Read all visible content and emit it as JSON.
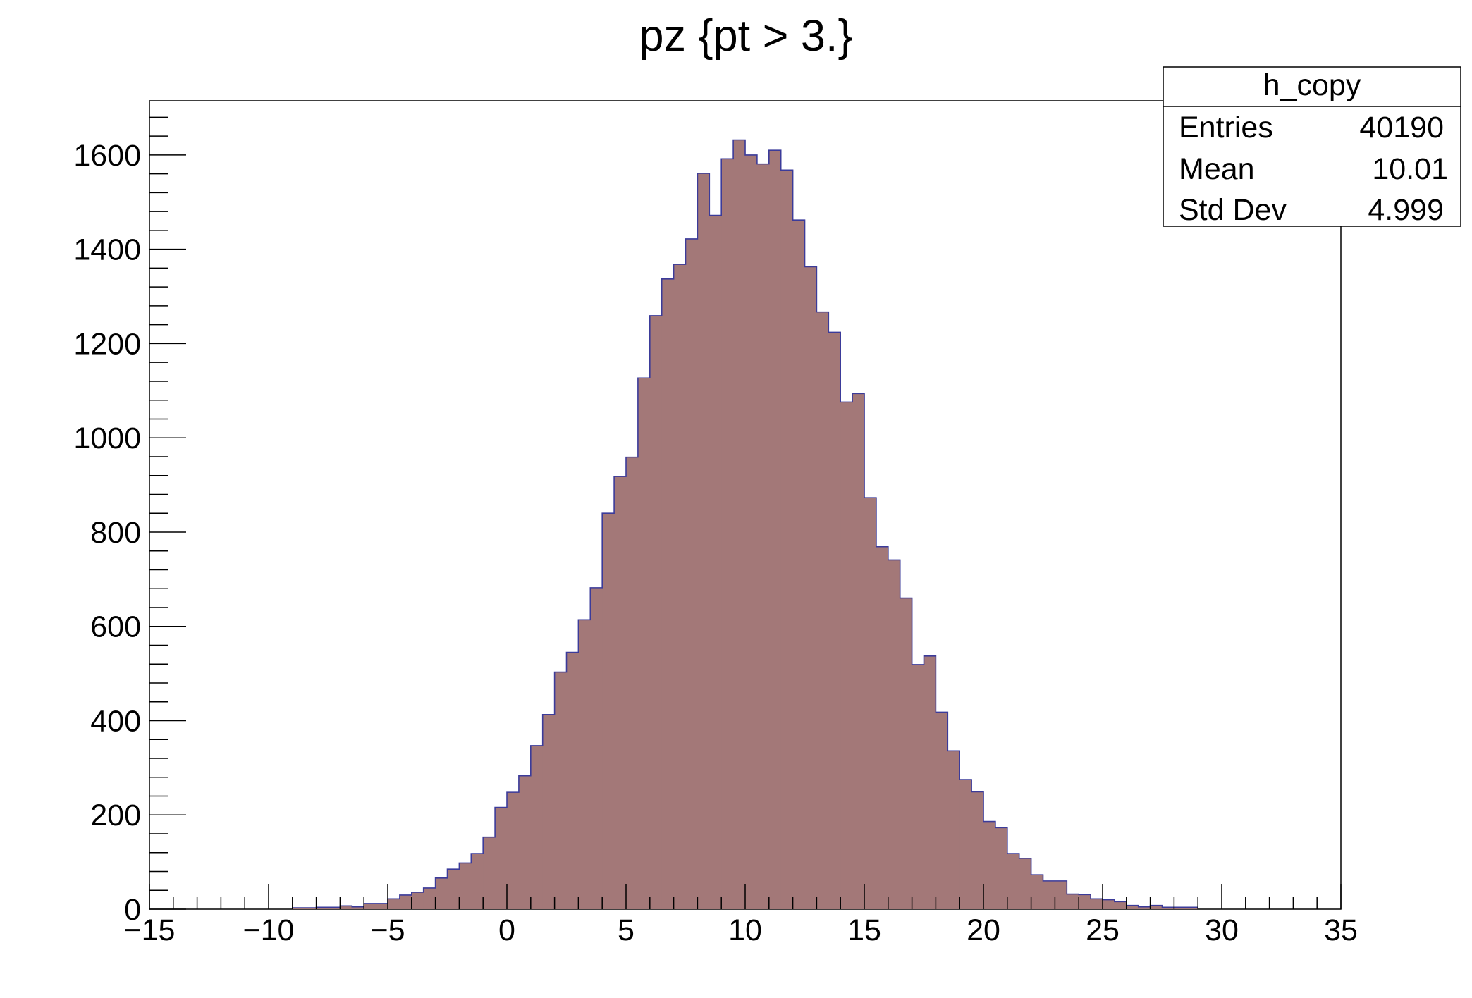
{
  "chart_data": {
    "type": "bar",
    "title": "pz {pt > 3.}",
    "xlabel": "",
    "ylabel": "",
    "xlim": [
      -15,
      35
    ],
    "ylim": [
      0,
      1715
    ],
    "grid": false,
    "colors": {
      "fill": "#a37878",
      "line": "#3b3b9a",
      "axis": "#000000"
    },
    "x_ticks": [
      -15,
      -10,
      -5,
      0,
      5,
      10,
      15,
      20,
      25,
      30,
      35
    ],
    "x_tick_labels": [
      "−15",
      "−10",
      "−5",
      "0",
      "5",
      "10",
      "15",
      "20",
      "25",
      "30",
      "35"
    ],
    "y_ticks": [
      0,
      200,
      400,
      600,
      800,
      1000,
      1200,
      1400,
      1600
    ],
    "y_tick_labels": [
      "0",
      "200",
      "400",
      "600",
      "800",
      "1000",
      "1200",
      "1400",
      "1600"
    ],
    "bin_width": 0.5,
    "bins": [
      {
        "x": -9.0,
        "value": 3
      },
      {
        "x": -8.5,
        "value": 3
      },
      {
        "x": -8.0,
        "value": 4
      },
      {
        "x": -7.5,
        "value": 4
      },
      {
        "x": -7.0,
        "value": 7
      },
      {
        "x": -6.5,
        "value": 5
      },
      {
        "x": -6.0,
        "value": 12
      },
      {
        "x": -5.5,
        "value": 12
      },
      {
        "x": -5.0,
        "value": 22
      },
      {
        "x": -4.5,
        "value": 30
      },
      {
        "x": -4.0,
        "value": 36
      },
      {
        "x": -3.5,
        "value": 45
      },
      {
        "x": -3.0,
        "value": 66
      },
      {
        "x": -2.5,
        "value": 85
      },
      {
        "x": -2.0,
        "value": 98
      },
      {
        "x": -1.5,
        "value": 118
      },
      {
        "x": -1.0,
        "value": 153
      },
      {
        "x": -0.5,
        "value": 216
      },
      {
        "x": 0.0,
        "value": 248
      },
      {
        "x": 0.5,
        "value": 283
      },
      {
        "x": 1.0,
        "value": 347
      },
      {
        "x": 1.5,
        "value": 413
      },
      {
        "x": 2.0,
        "value": 503
      },
      {
        "x": 2.5,
        "value": 545
      },
      {
        "x": 3.0,
        "value": 614
      },
      {
        "x": 3.5,
        "value": 682
      },
      {
        "x": 4.0,
        "value": 840
      },
      {
        "x": 4.5,
        "value": 918
      },
      {
        "x": 5.0,
        "value": 959
      },
      {
        "x": 5.5,
        "value": 1127
      },
      {
        "x": 6.0,
        "value": 1259
      },
      {
        "x": 6.5,
        "value": 1337
      },
      {
        "x": 7.0,
        "value": 1368
      },
      {
        "x": 7.5,
        "value": 1422
      },
      {
        "x": 8.0,
        "value": 1561
      },
      {
        "x": 8.5,
        "value": 1472
      },
      {
        "x": 9.0,
        "value": 1592
      },
      {
        "x": 9.5,
        "value": 1632
      },
      {
        "x": 10.0,
        "value": 1600
      },
      {
        "x": 10.5,
        "value": 1581
      },
      {
        "x": 11.0,
        "value": 1610
      },
      {
        "x": 11.5,
        "value": 1568
      },
      {
        "x": 12.0,
        "value": 1462
      },
      {
        "x": 12.5,
        "value": 1363
      },
      {
        "x": 13.0,
        "value": 1267
      },
      {
        "x": 13.5,
        "value": 1224
      },
      {
        "x": 14.0,
        "value": 1076
      },
      {
        "x": 14.5,
        "value": 1094
      },
      {
        "x": 15.0,
        "value": 873
      },
      {
        "x": 15.5,
        "value": 769
      },
      {
        "x": 16.0,
        "value": 741
      },
      {
        "x": 16.5,
        "value": 660
      },
      {
        "x": 17.0,
        "value": 519
      },
      {
        "x": 17.5,
        "value": 537
      },
      {
        "x": 18.0,
        "value": 418
      },
      {
        "x": 18.5,
        "value": 336
      },
      {
        "x": 19.0,
        "value": 275
      },
      {
        "x": 19.5,
        "value": 249
      },
      {
        "x": 20.0,
        "value": 186
      },
      {
        "x": 20.5,
        "value": 173
      },
      {
        "x": 21.0,
        "value": 118
      },
      {
        "x": 21.5,
        "value": 108
      },
      {
        "x": 22.0,
        "value": 73
      },
      {
        "x": 22.5,
        "value": 60
      },
      {
        "x": 23.0,
        "value": 60
      },
      {
        "x": 23.5,
        "value": 32
      },
      {
        "x": 24.0,
        "value": 31
      },
      {
        "x": 24.5,
        "value": 22
      },
      {
        "x": 25.0,
        "value": 20
      },
      {
        "x": 25.5,
        "value": 16
      },
      {
        "x": 26.0,
        "value": 8
      },
      {
        "x": 26.5,
        "value": 5
      },
      {
        "x": 27.0,
        "value": 8
      },
      {
        "x": 27.5,
        "value": 4
      },
      {
        "x": 28.0,
        "value": 4
      },
      {
        "x": 28.5,
        "value": 4
      }
    ],
    "stats_box": {
      "name": "h_copy",
      "placement": "top-right",
      "rows": [
        {
          "label": "Entries",
          "value": "40190"
        },
        {
          "label": "Mean",
          "value": "10.01"
        },
        {
          "label": "Std Dev",
          "value": "4.999"
        }
      ]
    }
  }
}
